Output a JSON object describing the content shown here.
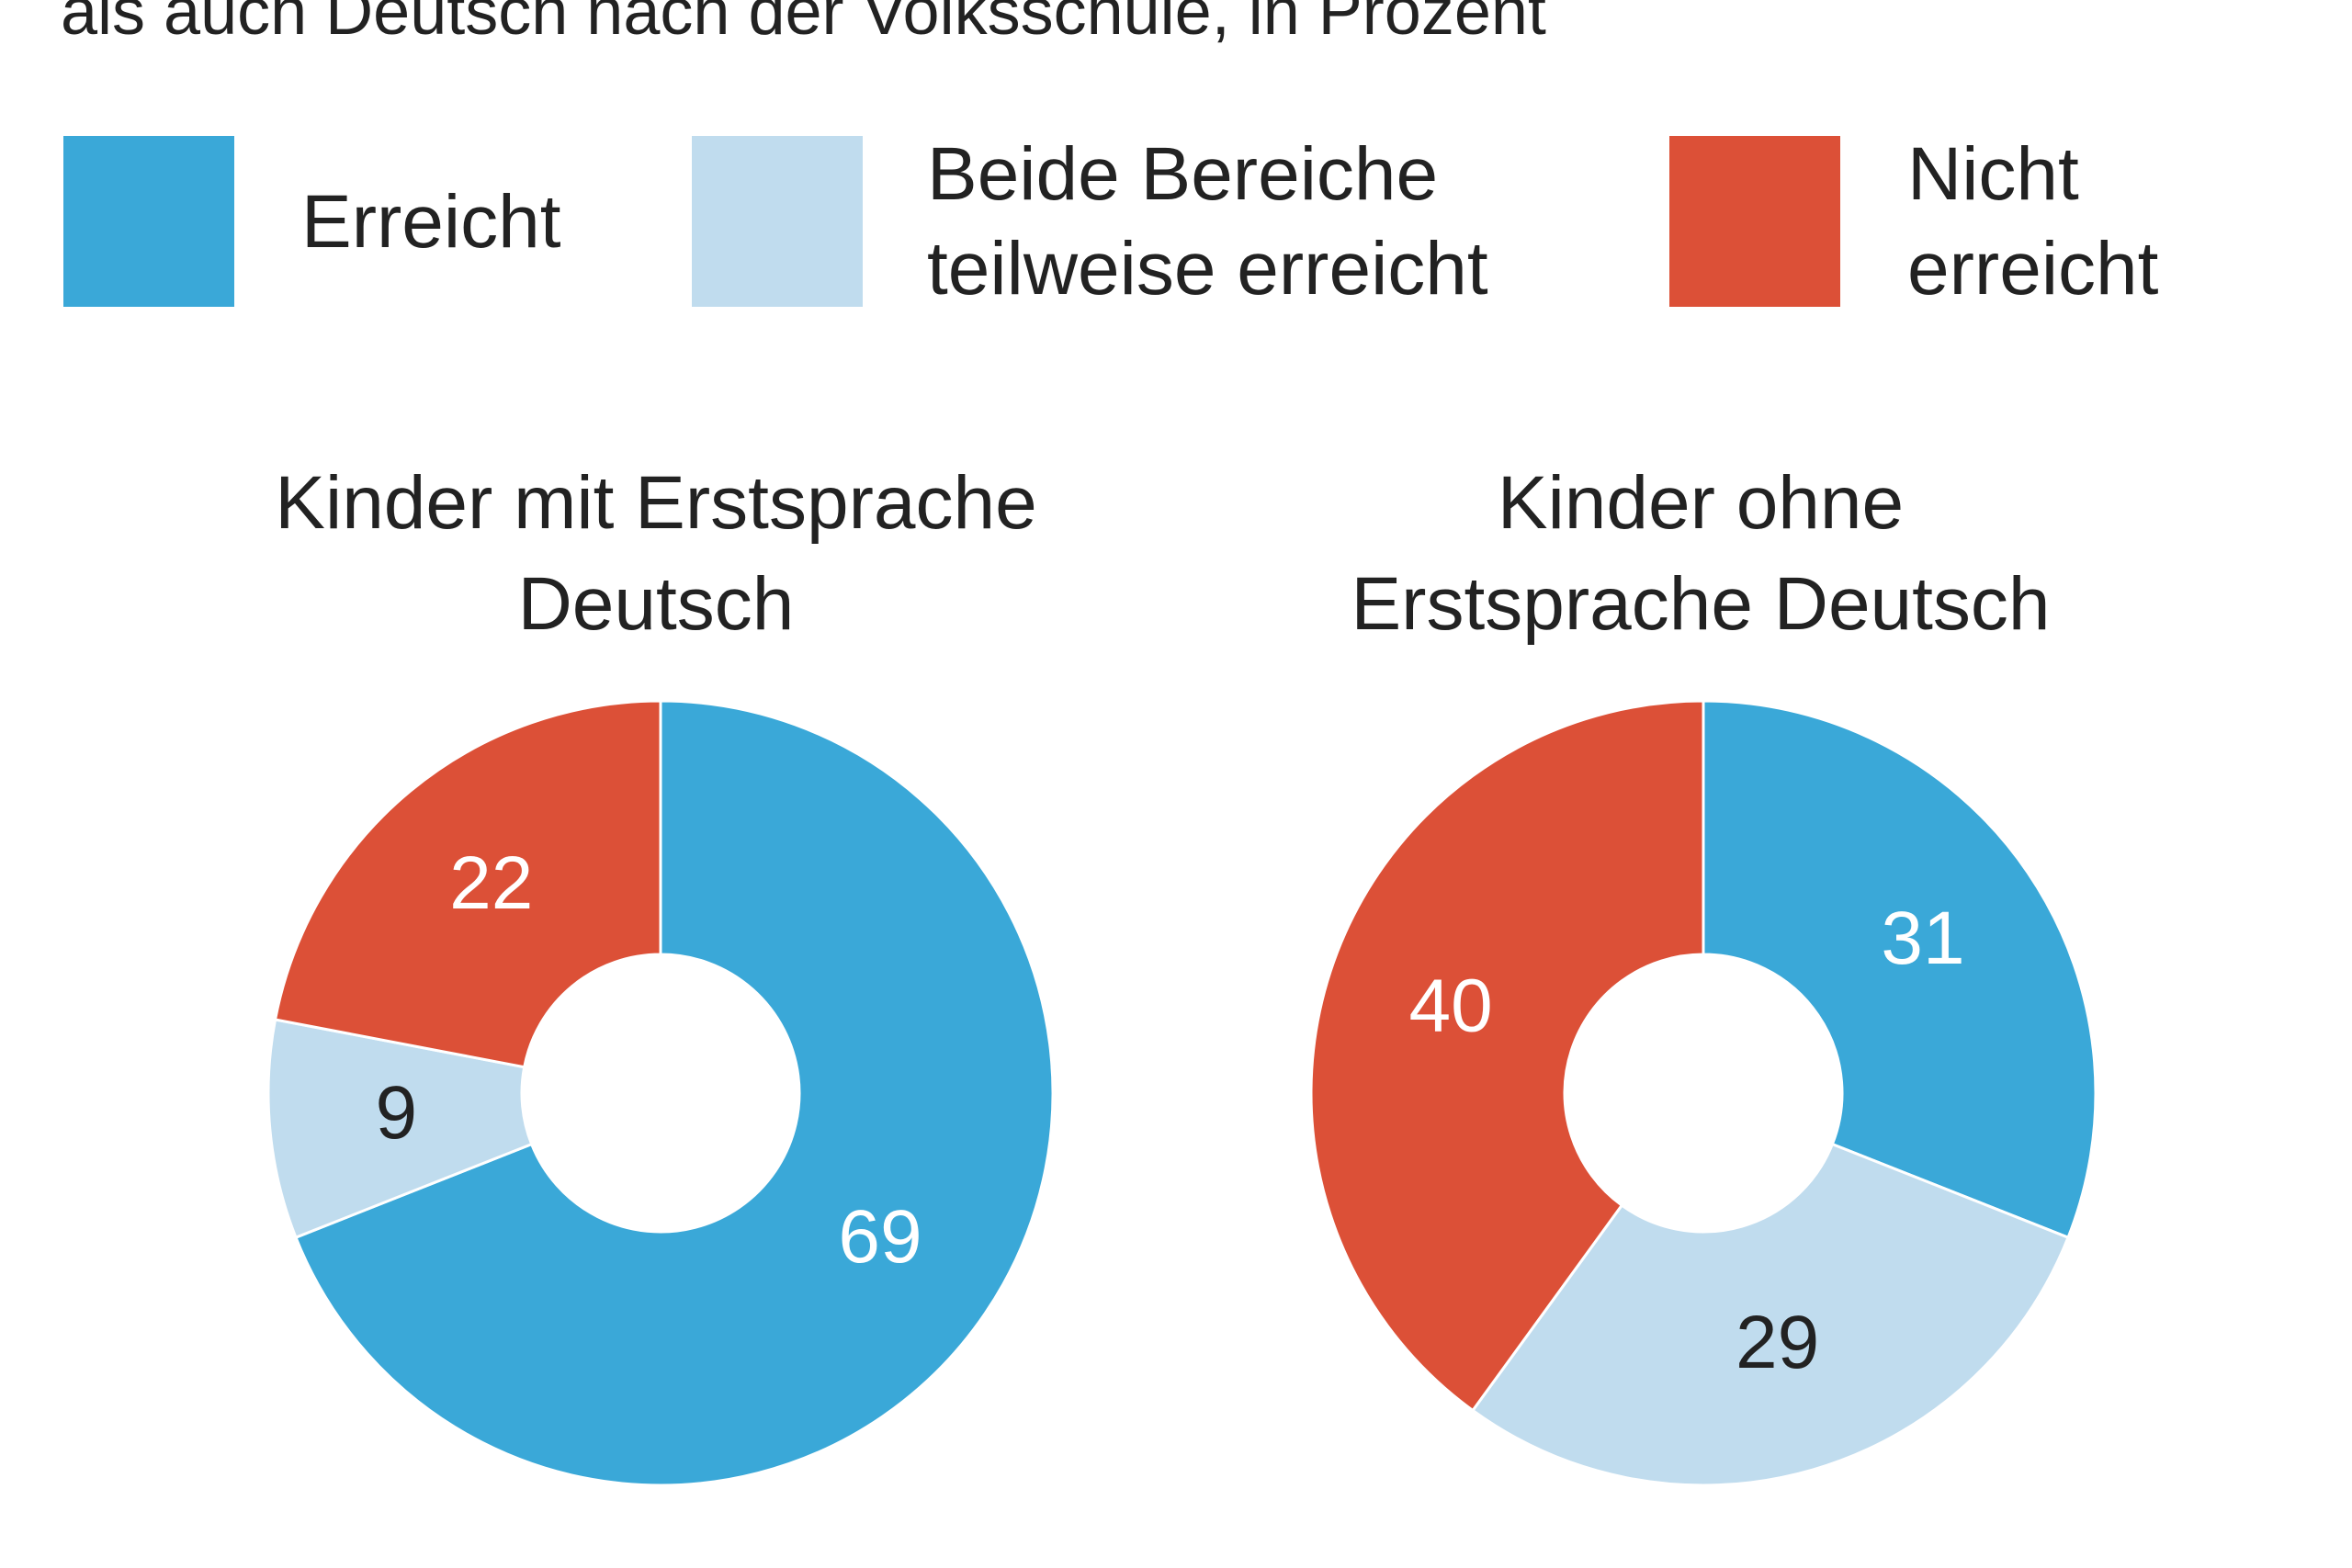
{
  "subtitle": "als auch Deutsch nach der Volksschule, in Prozent",
  "legend": {
    "labels": [
      "Erreicht",
      "Beide Bereiche teilweise erreicht",
      "Nicht erreicht"
    ],
    "colors": [
      "#3aa8d8",
      "#c0dcee",
      "#dc5037"
    ]
  },
  "chart_data": [
    {
      "type": "pie",
      "title": "Kinder mit Erstsprache Deutsch",
      "values": [
        69,
        9,
        22
      ]
    },
    {
      "type": "pie",
      "title": "Kinder ohne Erstsprache Deutsch",
      "values": [
        31,
        29,
        40
      ]
    }
  ]
}
